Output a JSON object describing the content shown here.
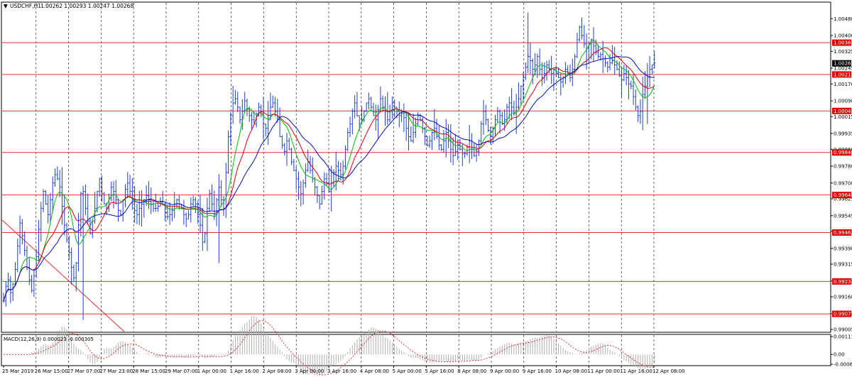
{
  "header": {
    "arrow": "▼",
    "symbol": "USDCHF,H1",
    "ohlc": "1.00262 1.00293 1.00247 1.00268"
  },
  "macd": {
    "label": "MACD(12,26,9) 0.000023 -0.000305",
    "ticks": [
      {
        "label": "0.001112",
        "value": 0.001112
      },
      {
        "label": "0.00",
        "value": 0.0
      },
      {
        "label": "-0.000607",
        "value": -0.000607
      }
    ]
  },
  "price_axis": {
    "ticks": [
      {
        "label": "1.00480",
        "value": 1.0048
      },
      {
        "label": "1.00400",
        "value": 1.004
      },
      {
        "label": "1.00325",
        "value": 1.00325
      },
      {
        "label": "1.00245",
        "value": 1.00245
      },
      {
        "label": "1.00170",
        "value": 1.0017
      },
      {
        "label": "1.00090",
        "value": 1.0009
      },
      {
        "label": "1.00015",
        "value": 1.00015
      },
      {
        "label": "0.99935",
        "value": 0.99935
      },
      {
        "label": "0.99860",
        "value": 0.9986
      },
      {
        "label": "0.99780",
        "value": 0.9978
      },
      {
        "label": "0.99700",
        "value": 0.997
      },
      {
        "label": "0.99625",
        "value": 0.99625
      },
      {
        "label": "0.99545",
        "value": 0.99545
      },
      {
        "label": "0.99470",
        "value": 0.9947
      },
      {
        "label": "0.99390",
        "value": 0.9939
      },
      {
        "label": "0.99315",
        "value": 0.99315
      },
      {
        "label": "0.99235",
        "value": 0.99235
      },
      {
        "label": "0.99160",
        "value": 0.9916
      },
      {
        "label": "0.99080",
        "value": 0.9908
      },
      {
        "label": "0.99005",
        "value": 0.99005
      }
    ],
    "current_price": {
      "label": "1.00268",
      "value": 1.00268
    }
  },
  "levels": [
    {
      "label": "1.00366",
      "value": 1.00366
    },
    {
      "label": "1.00215",
      "value": 1.00215
    },
    {
      "label": "1.00042",
      "value": 1.00042
    },
    {
      "label": "0.99845",
      "value": 0.99845
    },
    {
      "label": "0.99643",
      "value": 0.99643
    },
    {
      "label": "0.99465",
      "value": 0.99465
    },
    {
      "label": "0.99233",
      "value": 0.99233
    },
    {
      "label": "0.99079",
      "value": 0.99079
    }
  ],
  "time_axis": [
    "25 Mar 2019",
    "26 Mar 15:00",
    "27 Mar 07:00",
    "27 Mar 23:00",
    "28 Mar 15:00",
    "29 Mar 07:00",
    "1 Apr 00:00",
    "1 Apr 16:00",
    "2 Apr 08:00",
    "3 Apr 00:00",
    "3 Apr 16:00",
    "4 Apr 08:00",
    "5 Apr 00:00",
    "5 Apr 16:00",
    "8 Apr 08:00",
    "9 Apr 00:00",
    "9 Apr 16:00",
    "10 Apr 08:00",
    "11 Apr 00:00",
    "11 Apr 16:00",
    "12 Apr 08:00"
  ],
  "colors": {
    "price_bars": "#1f3fd0",
    "ma_fast": "#00c000",
    "ma_mid": "#e00000",
    "ma_slow": "#0010c0",
    "level_line": "#e03030",
    "level_label_bg": "#e00000",
    "grid": "#000000",
    "macd_hist": "#b0b0b0",
    "macd_signal": "#e03030",
    "trendline": "#e03030",
    "current_label_bg": "#000000"
  },
  "chart_data": {
    "type": "line",
    "ylim": [
      0.98995,
      1.00555
    ],
    "x_count": 290,
    "series": [
      {
        "values": [
          0.9914,
          0.9921,
          0.9924,
          0.9918,
          0.9922,
          0.9929,
          0.994,
          0.9951,
          0.9945,
          0.9938,
          0.993,
          0.9924,
          0.9919,
          0.9926,
          0.9935,
          0.9948,
          0.9958,
          0.9966,
          0.996,
          0.9955,
          0.9962,
          0.997,
          0.9974,
          0.9972,
          0.9968,
          0.9959,
          0.995,
          0.9943,
          0.9937,
          0.993,
          0.9925,
          0.9932,
          0.995,
          0.9965,
          0.9966,
          0.9958,
          0.9952,
          0.9946,
          0.9952,
          0.9958,
          0.9966,
          0.9972,
          0.9965,
          0.996,
          0.9958,
          0.9963,
          0.9968,
          0.9966,
          0.9962,
          0.9957,
          0.9955,
          0.9962,
          0.9967,
          0.997,
          0.9966,
          0.9962,
          0.9957,
          0.9955,
          0.9958,
          0.996,
          0.9962,
          0.9964,
          0.9962,
          0.996,
          0.9958,
          0.9958,
          0.9959,
          0.9961,
          0.996,
          0.9956,
          0.9954,
          0.9955,
          0.9957,
          0.996,
          0.9962,
          0.996,
          0.9958,
          0.9955,
          0.9953,
          0.9955,
          0.996,
          0.9962,
          0.996,
          0.9955,
          0.995,
          0.9942,
          0.9946,
          0.9958,
          0.9965,
          0.996,
          0.9955,
          0.9962,
          0.9968,
          0.9962,
          0.9958,
          0.9975,
          0.9992,
          1.0002,
          1.0008,
          1.001,
          1.0006,
          1.0,
          1.0004,
          1.0009,
          1.0005,
          1.0002,
          1.0,
          0.9998,
          1.0002,
          1.0006,
          1.0003,
          0.9998,
          0.9996,
          1.0,
          1.0006,
          1.0008,
          1.0004,
          1.0,
          0.9992,
          0.9988,
          0.9985,
          0.999,
          0.9986,
          0.998,
          0.9976,
          0.9972,
          0.9968,
          0.9965,
          0.997,
          0.9976,
          0.998,
          0.9976,
          0.9972,
          0.9968,
          0.9964,
          0.996,
          0.9966,
          0.9972,
          0.997,
          0.9966,
          0.997,
          0.9975,
          0.9978,
          0.9976,
          0.9974,
          0.9978,
          0.9986,
          0.9994,
          0.9998,
          1.0004,
          1.0008,
          1.0002,
          0.9998,
          1.0,
          1.0004,
          1.0008,
          1.001,
          1.0006,
          1.0002,
          1.0,
          1.0004,
          1.001,
          1.0006,
          1.0004,
          1.0,
          1.0004,
          1.0008,
          1.0006,
          1.0004,
          1.0002,
          1.0003,
          1.0001,
          0.9996,
          0.9992,
          0.999,
          0.9994,
          0.9998,
          1.0002,
          1.0,
          0.9996,
          0.9992,
          0.9988,
          0.999,
          0.9994,
          0.9996,
          0.9992,
          0.9988,
          0.9986,
          0.999,
          0.9994,
          0.999,
          0.9986,
          0.9983,
          0.9985,
          0.9988,
          0.9986,
          0.9984,
          0.9984,
          0.9987,
          0.999,
          0.9986,
          0.9983,
          0.9985,
          0.999,
          0.9998,
          1.0004,
          1.0,
          0.9995,
          0.9992,
          0.9996,
          1.0,
          1.0004,
          1.0002,
          0.9998,
          1.0,
          1.0006,
          1.0008,
          1.0006,
          1.0003,
          1.0006,
          1.001,
          1.0016,
          1.002,
          1.0025,
          1.003,
          1.0028,
          1.0024,
          1.0026,
          1.003,
          1.0024,
          1.002,
          1.0022,
          1.0026,
          1.0024,
          1.0022,
          1.0024,
          1.0022,
          1.002,
          1.0018,
          1.002,
          1.0024,
          1.0022,
          1.002,
          1.0024,
          1.003,
          1.0038,
          1.0044,
          1.004,
          1.0036,
          1.0034,
          1.0036,
          1.0038,
          1.0035,
          1.0032,
          1.003,
          1.0031,
          1.0029,
          1.0027,
          1.0025,
          1.0027,
          1.0028,
          1.0026,
          1.0024,
          1.0021,
          1.0019,
          1.0022,
          1.002,
          1.0017,
          1.0016,
          1.0011,
          1.0006,
          1.0002,
          1.0004,
          1.0012,
          1.0016,
          1.002,
          1.0024,
          1.0026,
          1.0027
        ]
      },
      {
        "values": []
      },
      {
        "values": []
      },
      {
        "values": []
      }
    ]
  }
}
